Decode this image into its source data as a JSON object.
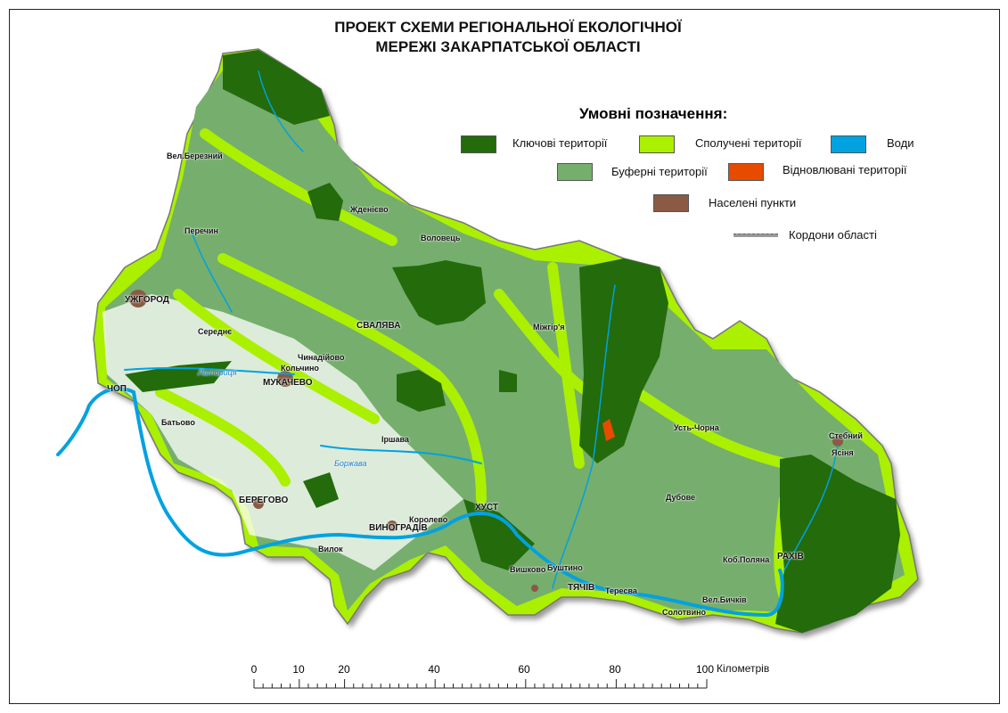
{
  "title": {
    "line1": "ПРОЕКТ СХЕМИ РЕГІОНАЛЬНОЇ ЕКОЛОГІЧНОЇ",
    "line2": "МЕРЕЖІ ЗАКАРПАТСЬКОЇ ОБЛАСТІ"
  },
  "legend": {
    "title": "Умовні позначення:",
    "items": [
      {
        "label": "Ключові території",
        "color": "#236b0b"
      },
      {
        "label": "Сполучені території",
        "color": "#aaf000"
      },
      {
        "label": "Води",
        "color": "#00a2e0"
      },
      {
        "label": "Буферні території",
        "color": "#76ae6e"
      },
      {
        "label": "Відновлювані території",
        "color": "#e64b00"
      },
      {
        "label": "Населені пункти",
        "color": "#8a5a44"
      },
      {
        "label": "Кордони області",
        "color": "#999999"
      }
    ]
  },
  "places": [
    "Вел.Березний",
    "Жденієво",
    "Перечин",
    "Воловець",
    "УЖГОРОД",
    "Середнє",
    "СВАЛЯВА",
    "Міжгір'я",
    "Чинадійово",
    "Кольчино",
    "МУКАЧЕВО",
    "ЧОП",
    "Батьово",
    "Іршава",
    "БЕРЕГОВО",
    "ВИНОГРАДІВ",
    "Королево",
    "ХУСТ",
    "Вилок",
    "Вишково",
    "Буштино",
    "ТЯЧІВ",
    "Тересва",
    "Солотвино",
    "Вел.Бичків",
    "Коб.Поляна",
    "РАХІВ",
    "Дубове",
    "Усть-Чорна",
    "Стебний",
    "Ясіня"
  ],
  "rivers": [
    "Латориця",
    "Боржава"
  ],
  "scale": {
    "ticks": [
      "0",
      "10",
      "20",
      "40",
      "60",
      "80",
      "100"
    ],
    "unit": "Кілометрів",
    "max_km": 100
  }
}
